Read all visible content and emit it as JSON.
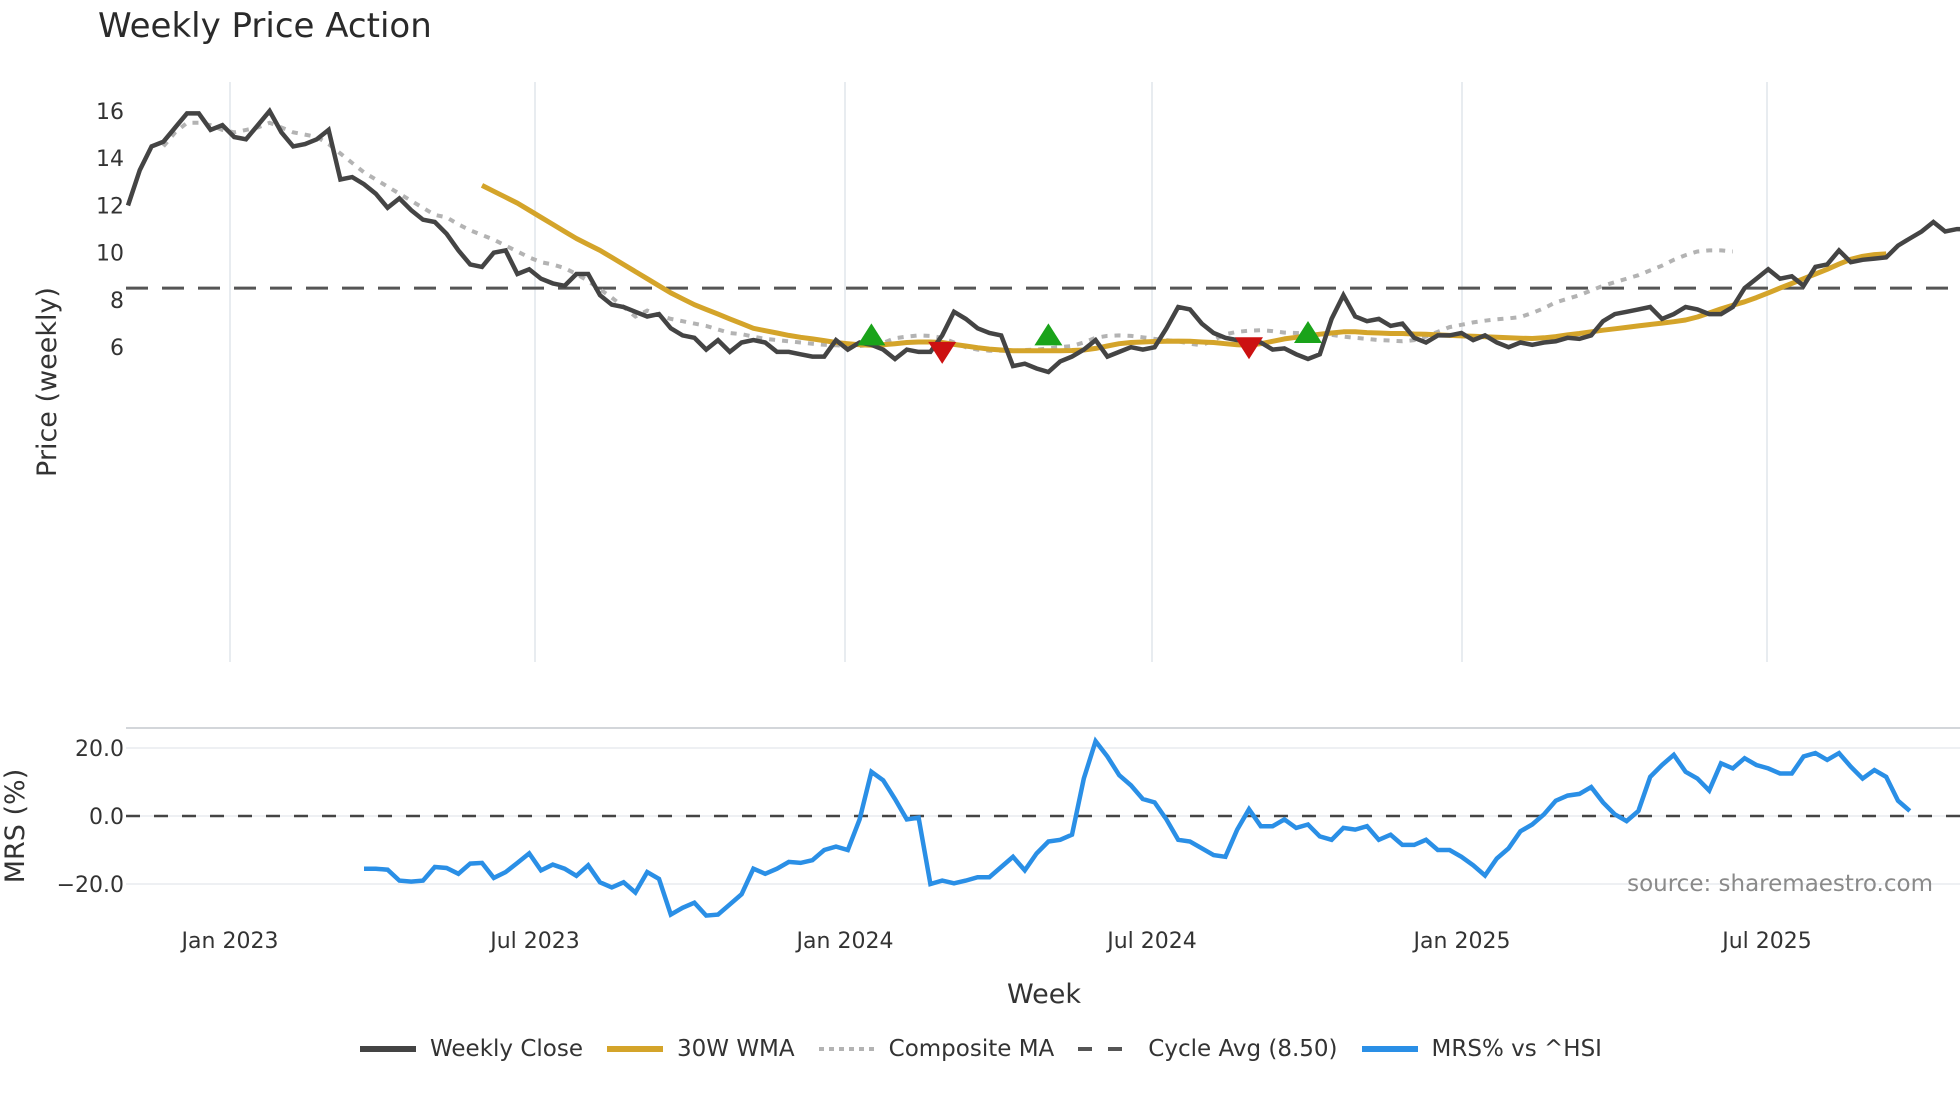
{
  "title": "Weekly Price Action",
  "source_label": "source: sharemaestro.com",
  "colors": {
    "weekly_close": "#444444",
    "wma": "#d4a42a",
    "composite": "#b3b3b3",
    "cycle_avg": "#555555",
    "mrs": "#2a8fe6",
    "buy_marker": "#1aa31a",
    "sell_marker": "#cc1111",
    "grid": "#e8ecf0"
  },
  "legend": [
    {
      "key": "weekly_close",
      "label": "Weekly Close",
      "style": "solid"
    },
    {
      "key": "wma",
      "label": "30W WMA",
      "style": "solid"
    },
    {
      "key": "composite",
      "label": "Composite MA",
      "style": "dotted"
    },
    {
      "key": "cycle_avg",
      "label": "Cycle Avg (8.50)",
      "style": "dashed"
    },
    {
      "key": "mrs",
      "label": "MRS% vs ^HSI",
      "style": "solid"
    }
  ],
  "chart_data": [
    {
      "type": "line",
      "title": "Weekly Price Action",
      "xlabel": "Week",
      "ylabel": "Price (weekly)",
      "ylim": [
        4.1,
        16.6
      ],
      "yticks": [
        6,
        8,
        10,
        12,
        16,
        14
      ],
      "xticks": [
        "Jan 2023",
        "Jul 2023",
        "Jan 2024",
        "Jul 2024",
        "Jan 2025",
        "Jul 2025"
      ],
      "grid": true,
      "legend_position": "bottom",
      "x_start_week_offset": -8.7,
      "cycle_avg": 8.5,
      "series": [
        {
          "name": "Weekly Close",
          "start_index": 0,
          "values": [
            12.0,
            13.5,
            14.5,
            14.7,
            15.3,
            15.9,
            15.9,
            15.2,
            15.4,
            14.9,
            14.8,
            15.4,
            16.0,
            15.1,
            14.5,
            14.6,
            14.8,
            15.2,
            13.1,
            13.2,
            12.9,
            12.5,
            11.9,
            12.3,
            11.8,
            11.4,
            11.3,
            10.8,
            10.1,
            9.5,
            9.4,
            10.0,
            10.1,
            9.1,
            9.3,
            8.9,
            8.7,
            8.6,
            9.1,
            9.1,
            8.2,
            7.8,
            7.7,
            7.5,
            7.3,
            7.4,
            6.8,
            6.5,
            6.4,
            5.9,
            6.3,
            5.8,
            6.2,
            6.3,
            6.2,
            5.8,
            5.8,
            5.7,
            5.6,
            5.6,
            6.3,
            5.9,
            6.2,
            6.1,
            5.9,
            5.5,
            5.9,
            5.8,
            5.8,
            6.5,
            7.5,
            7.2,
            6.8,
            6.6,
            6.5,
            5.2,
            5.3,
            5.1,
            4.95,
            5.4,
            5.6,
            5.9,
            6.3,
            5.6,
            5.8,
            6.0,
            5.9,
            6.0,
            6.8,
            7.7,
            7.6,
            7.0,
            6.6,
            6.4,
            6.3,
            6.3,
            6.2,
            5.9,
            5.95,
            5.7,
            5.5,
            5.7,
            7.2,
            8.2,
            7.3,
            7.1,
            7.2,
            6.9,
            7.0,
            6.4,
            6.2,
            6.5,
            6.5,
            6.6,
            6.3,
            6.5,
            6.2,
            6.0,
            6.2,
            6.1,
            6.2,
            6.25,
            6.4,
            6.35,
            6.5,
            7.1,
            7.4,
            7.5,
            7.6,
            7.7,
            7.2,
            7.4,
            7.7,
            7.6,
            7.4,
            7.4,
            7.7,
            8.5,
            8.9,
            9.3,
            8.9,
            9.0,
            8.6,
            9.4,
            9.5,
            10.1,
            9.6,
            9.7,
            9.75,
            9.8,
            10.3,
            10.6,
            10.9,
            11.3,
            10.9,
            11.0,
            11.0,
            10.4,
            10.1,
            9.9
          ]
        },
        {
          "name": "30W WMA",
          "start_index": 30,
          "values": [
            12.85,
            12.6,
            12.35,
            12.1,
            11.8,
            11.5,
            11.2,
            10.9,
            10.6,
            10.35,
            10.1,
            9.8,
            9.5,
            9.2,
            8.9,
            8.6,
            8.3,
            8.05,
            7.8,
            7.6,
            7.4,
            7.2,
            7.0,
            6.8,
            6.7,
            6.6,
            6.5,
            6.42,
            6.35,
            6.28,
            6.2,
            6.15,
            6.1,
            6.08,
            6.1,
            6.15,
            6.2,
            6.22,
            6.22,
            6.2,
            6.12,
            6.05,
            5.98,
            5.92,
            5.88,
            5.85,
            5.85,
            5.85,
            5.85,
            5.85,
            5.86,
            5.88,
            5.95,
            6.05,
            6.15,
            6.2,
            6.22,
            6.24,
            6.25,
            6.26,
            6.25,
            6.22,
            6.2,
            6.15,
            6.1,
            6.08,
            6.15,
            6.25,
            6.35,
            6.42,
            6.48,
            6.55,
            6.6,
            6.65,
            6.65,
            6.62,
            6.6,
            6.58,
            6.58,
            6.56,
            6.55,
            6.52,
            6.5,
            6.48,
            6.46,
            6.44,
            6.42,
            6.4,
            6.38,
            6.37,
            6.4,
            6.45,
            6.52,
            6.58,
            6.65,
            6.72,
            6.78,
            6.84,
            6.9,
            6.96,
            7.02,
            7.08,
            7.15,
            7.28,
            7.45,
            7.62,
            7.78,
            7.92,
            8.1,
            8.3,
            8.5,
            8.7,
            8.9,
            9.1,
            9.3,
            9.52,
            9.72,
            9.85,
            9.92,
            9.95
          ]
        },
        {
          "name": "Composite MA",
          "start_index": 3,
          "values": [
            14.5,
            15.1,
            15.5,
            15.5,
            15.4,
            15.2,
            15.1,
            15.2,
            15.3,
            15.5,
            15.3,
            15.1,
            15.0,
            14.9,
            14.6,
            14.2,
            13.8,
            13.4,
            13.1,
            12.8,
            12.5,
            12.2,
            11.9,
            11.6,
            11.5,
            11.2,
            10.95,
            10.75,
            10.55,
            10.3,
            10.05,
            9.8,
            9.6,
            9.5,
            9.35,
            9.1,
            8.8,
            8.45,
            8.1,
            7.7,
            7.3,
            7.55,
            7.35,
            7.2,
            7.1,
            7.0,
            6.9,
            6.75,
            6.6,
            6.55,
            6.45,
            6.35,
            6.3,
            6.25,
            6.2,
            6.15,
            6.1,
            6.08,
            6.05,
            6.05,
            6.1,
            6.18,
            6.38,
            6.45,
            6.5,
            6.48,
            6.4,
            6.2,
            6.0,
            5.9,
            5.85,
            5.85,
            5.85,
            5.88,
            5.9,
            5.95,
            6.0,
            6.05,
            6.2,
            6.4,
            6.48,
            6.5,
            6.48,
            6.42,
            6.35,
            6.3,
            6.25,
            6.15,
            6.08,
            6.3,
            6.55,
            6.65,
            6.7,
            6.72,
            6.68,
            6.62,
            6.6,
            6.58,
            6.55,
            6.52,
            6.45,
            6.4,
            6.35,
            6.3,
            6.28,
            6.25,
            6.3,
            6.45,
            6.65,
            6.85,
            6.95,
            7.05,
            7.12,
            7.18,
            7.22,
            7.28,
            7.45,
            7.65,
            7.9,
            8.05,
            8.2,
            8.4,
            8.6,
            8.75,
            8.9,
            9.05,
            9.25,
            9.45,
            9.7,
            9.9,
            10.05,
            10.1,
            10.1,
            10.05
          ]
        }
      ],
      "markers": [
        {
          "type": "buy",
          "week_index": 63,
          "value": 6.5
        },
        {
          "type": "sell",
          "week_index": 69,
          "value": 5.8
        },
        {
          "type": "buy",
          "week_index": 78,
          "value": 6.5
        },
        {
          "type": "sell",
          "week_index": 95,
          "value": 6.0
        },
        {
          "type": "buy",
          "week_index": 100,
          "value": 6.6
        }
      ]
    },
    {
      "type": "line",
      "ylabel": "MRS (%)",
      "ylim": [
        -27,
        26
      ],
      "yticks": [
        "20.0",
        "0.0",
        "−20.0"
      ],
      "zero_line": 0,
      "series": [
        {
          "name": "MRS% vs ^HSI",
          "start_index": 20,
          "values": [
            -15.5,
            -15.5,
            -15.8,
            -19.0,
            -19.3,
            -19.0,
            -15.0,
            -15.3,
            -17.0,
            -14.0,
            -13.8,
            -18.2,
            -16.5,
            -13.8,
            -11.0,
            -16.0,
            -14.3,
            -15.5,
            -17.6,
            -14.5,
            -19.5,
            -21.0,
            -19.5,
            -22.5,
            -16.5,
            -18.5,
            -29.0,
            -27.0,
            -25.5,
            -29.3,
            -29.0,
            -26.0,
            -23.0,
            -15.5,
            -17.0,
            -15.5,
            -13.5,
            -13.8,
            -13.0,
            -10.0,
            -9.0,
            -10.0,
            -1.0,
            13.0,
            10.5,
            5.0,
            -1.0,
            -0.5,
            -20.0,
            -19.0,
            -19.8,
            -19.0,
            -18.0,
            -18.0,
            -15.0,
            -12.0,
            -16.0,
            -11.0,
            -7.5,
            -7.0,
            -5.5,
            11.0,
            22.0,
            17.5,
            12.0,
            9.0,
            5.0,
            4.0,
            -1.0,
            -7.0,
            -7.5,
            -9.5,
            -11.5,
            -12.0,
            -4.0,
            2.0,
            -3.0,
            -3.0,
            -1.0,
            -3.5,
            -2.5,
            -6.0,
            -7.0,
            -3.5,
            -4.0,
            -3.0,
            -7.0,
            -5.5,
            -8.5,
            -8.5,
            -7.0,
            -10.0,
            -10.0,
            -12.0,
            -14.5,
            -17.5,
            -12.5,
            -9.5,
            -4.5,
            -2.5,
            0.5,
            4.5,
            6.0,
            6.5,
            8.5,
            4.0,
            0.5,
            -1.5,
            1.5,
            11.5,
            15.0,
            18.0,
            13.0,
            11.0,
            7.5,
            15.5,
            14.0,
            17.0,
            15.0,
            14.0,
            12.5,
            12.5,
            17.5,
            18.5,
            16.5,
            18.5,
            14.5,
            11.0,
            13.5,
            11.5,
            4.5,
            1.5
          ]
        }
      ]
    }
  ]
}
